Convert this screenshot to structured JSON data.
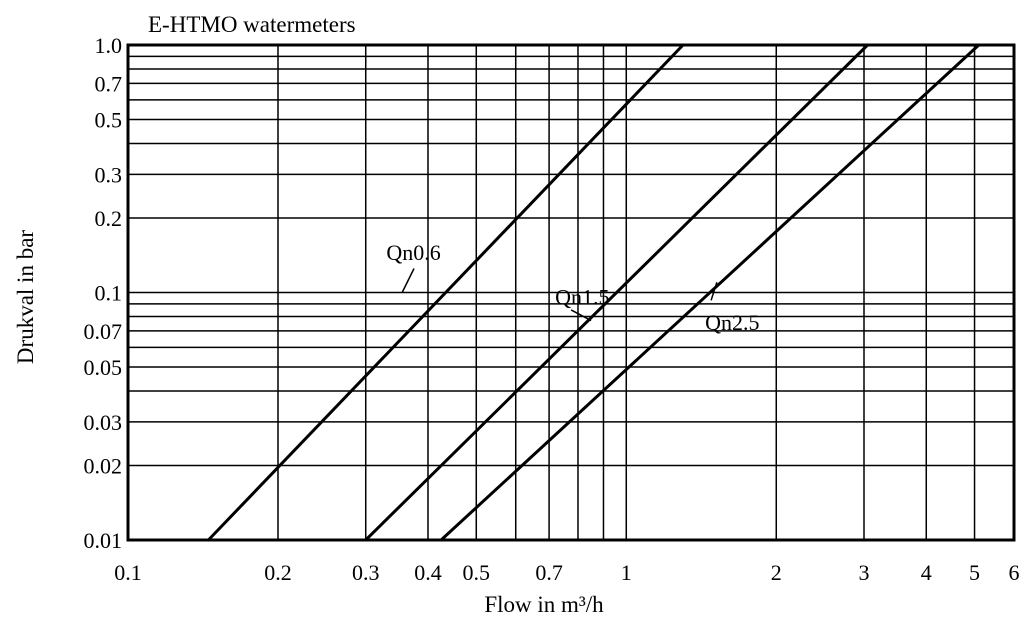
{
  "chart_data": {
    "type": "line",
    "title": "E-HTMO watermeters",
    "xlabel": "Flow in m³/h",
    "ylabel": "Drukval in bar",
    "x_scale": "log",
    "y_scale": "log",
    "xlim": [
      0.1,
      6
    ],
    "ylim": [
      0.01,
      1.0
    ],
    "grid": true,
    "x_ticks": [
      {
        "value": 0.1,
        "label": "0.1"
      },
      {
        "value": 0.2,
        "label": "0.2"
      },
      {
        "value": 0.3,
        "label": "0.3"
      },
      {
        "value": 0.4,
        "label": "0.4"
      },
      {
        "value": 0.5,
        "label": "0.5"
      },
      {
        "value": 0.7,
        "label": "0.7"
      },
      {
        "value": 1,
        "label": "1"
      },
      {
        "value": 2,
        "label": "2"
      },
      {
        "value": 3,
        "label": "3"
      },
      {
        "value": 4,
        "label": "4"
      },
      {
        "value": 5,
        "label": "5"
      },
      {
        "value": 6,
        "label": "6"
      }
    ],
    "x_grid": [
      0.2,
      0.3,
      0.4,
      0.5,
      0.6,
      0.7,
      0.8,
      0.9,
      1,
      2,
      3,
      4,
      5
    ],
    "y_ticks": [
      {
        "value": 0.01,
        "label": "0.01"
      },
      {
        "value": 0.02,
        "label": "0.02"
      },
      {
        "value": 0.03,
        "label": "0.03"
      },
      {
        "value": 0.05,
        "label": "0.05"
      },
      {
        "value": 0.07,
        "label": "0.07"
      },
      {
        "value": 0.1,
        "label": "0.1"
      },
      {
        "value": 0.2,
        "label": "0.2"
      },
      {
        "value": 0.3,
        "label": "0.3"
      },
      {
        "value": 0.5,
        "label": "0.5"
      },
      {
        "value": 0.7,
        "label": "0.7"
      },
      {
        "value": 1.0,
        "label": "1.0"
      }
    ],
    "y_grid": [
      0.02,
      0.03,
      0.04,
      0.05,
      0.06,
      0.07,
      0.08,
      0.09,
      0.1,
      0.2,
      0.3,
      0.4,
      0.5,
      0.6,
      0.7,
      0.8,
      0.9
    ],
    "series": [
      {
        "name": "Qn0.6",
        "x": [
          0.145,
          1.3
        ],
        "y": [
          0.01,
          1.0
        ]
      },
      {
        "name": "Qn1.5",
        "x": [
          0.3,
          3.05
        ],
        "y": [
          0.01,
          1.0
        ]
      },
      {
        "name": "Qn2.5",
        "x": [
          0.425,
          5.1
        ],
        "y": [
          0.01,
          1.0
        ]
      }
    ]
  }
}
